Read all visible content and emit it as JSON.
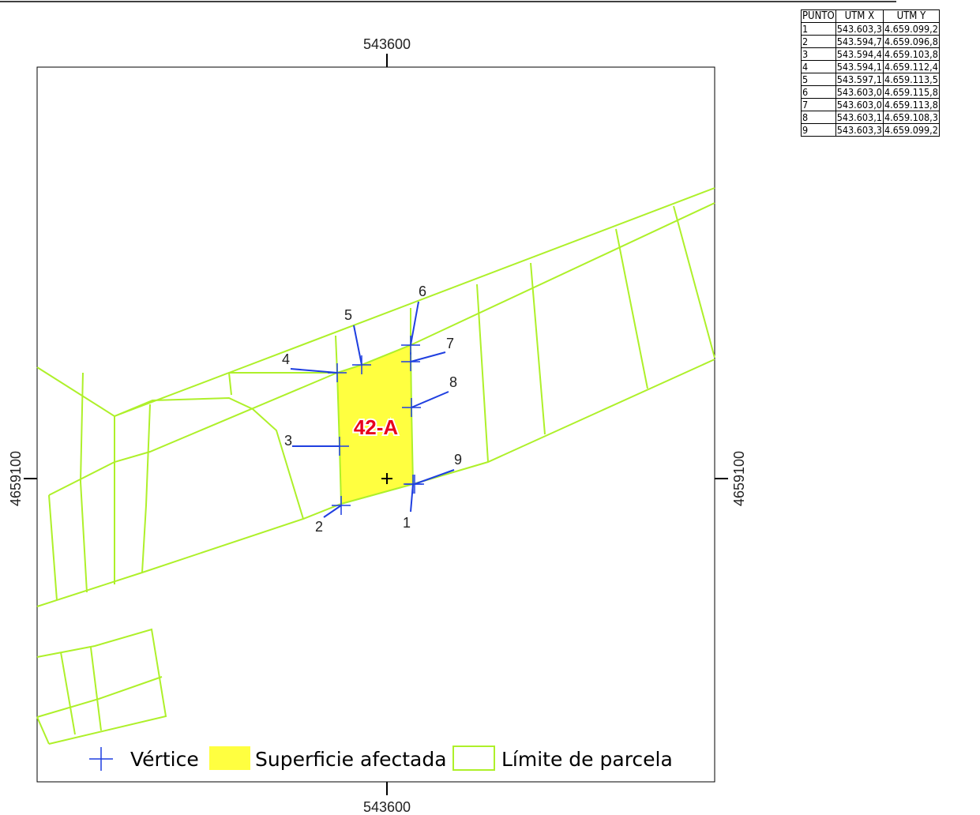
{
  "map": {
    "top_label": "543600",
    "bottom_label": "543600",
    "left_label": "4659100",
    "right_label": "4659100",
    "parcel_label": "42-A",
    "vertex_labels": [
      "1",
      "2",
      "3",
      "4",
      "5",
      "6",
      "7",
      "8",
      "9"
    ],
    "legend": [
      "Vértice",
      "Superficie afectada",
      "Límite de parcela"
    ]
  },
  "table": {
    "header": [
      "PUNTO",
      "UTM X",
      "UTM Y"
    ],
    "rows": [
      [
        "1",
        "543.603,3",
        "4.659.099,2"
      ],
      [
        "2",
        "543.594,7",
        "4.659.096,8"
      ],
      [
        "3",
        "543.594,4",
        "4.659.103,8"
      ],
      [
        "4",
        "543.594,1",
        "4.659.112,4"
      ],
      [
        "5",
        "543.597,1",
        "4.659.113,5"
      ],
      [
        "6",
        "543.603,0",
        "4.659.115,8"
      ],
      [
        "7",
        "543.603,0",
        "4.659.113,8"
      ],
      [
        "8",
        "543.603,1",
        "4.659.108,3"
      ],
      [
        "9",
        "543.603,3",
        "4.659.099,2"
      ]
    ]
  }
}
